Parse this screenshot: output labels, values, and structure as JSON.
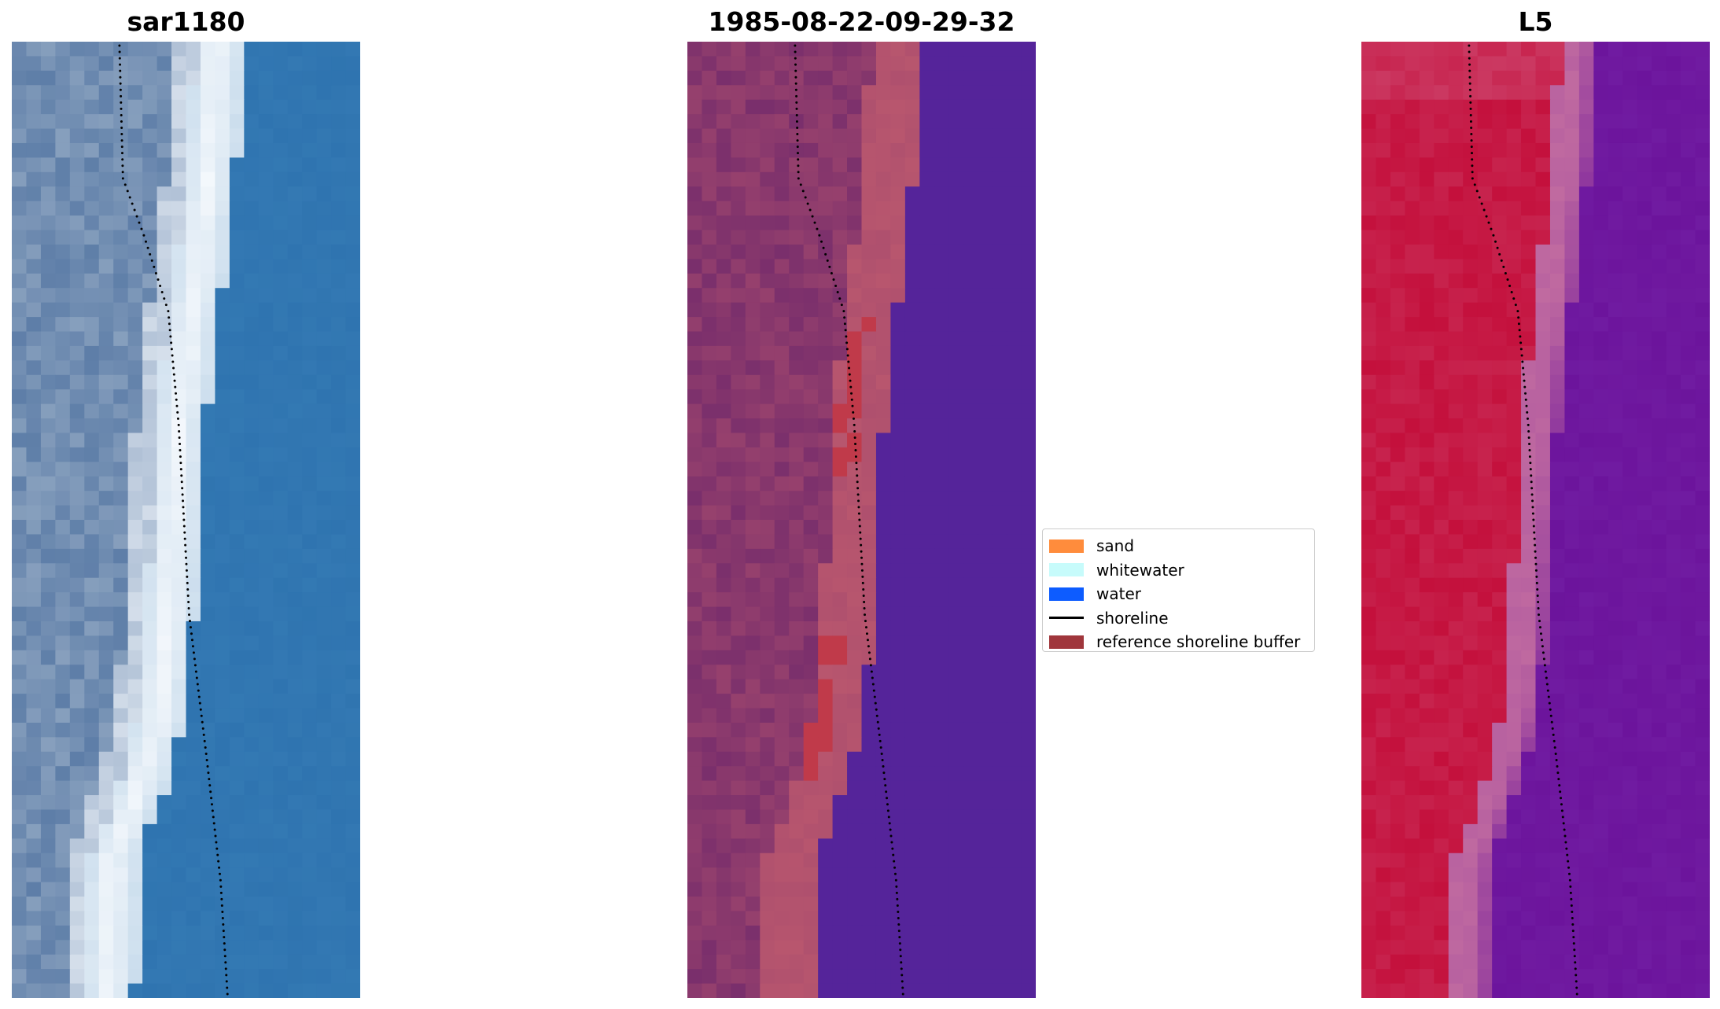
{
  "panels": [
    {
      "title": "sar1180",
      "palette": "rgb"
    },
    {
      "title": "1985-08-22-09-29-32",
      "palette": "class"
    },
    {
      "title": "L5",
      "palette": "ndwi"
    }
  ],
  "legend": {
    "items": [
      {
        "label": "sand",
        "type": "patch",
        "color": "#ff8c3c"
      },
      {
        "label": "whitewater",
        "type": "patch",
        "color": "#c7fbfb"
      },
      {
        "label": "water",
        "type": "patch",
        "color": "#0d5cff"
      },
      {
        "label": "shoreline",
        "type": "line",
        "color": "#000000"
      },
      {
        "label": "reference shoreline buffer",
        "type": "patch",
        "color": "#a0363c"
      }
    ]
  },
  "colors": {
    "land_rgb": "#5e7ea8",
    "breaker_white": "#f4f8fc",
    "ocean_rgb": "#2f74b0",
    "land_class": "#7a2f6c",
    "buffer_class": "#b8566e",
    "water_class": "#55249a",
    "ref_buffer_class": "#c03a4a",
    "ndwi_land": "#c4103c",
    "ndwi_transition": "#c06aa0",
    "ndwi_water": "#6c149c",
    "shoreline": "#000000"
  }
}
